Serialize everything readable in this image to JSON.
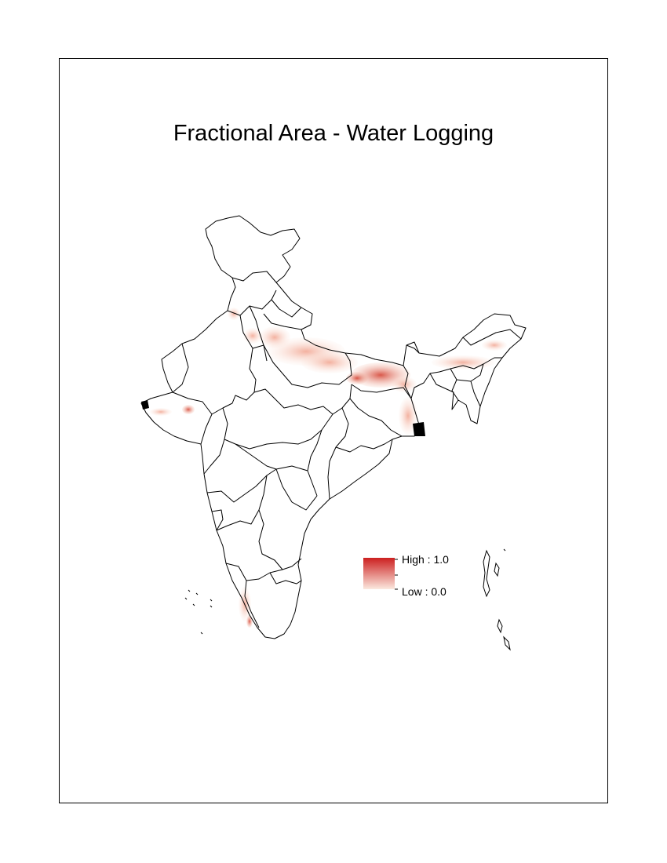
{
  "map": {
    "title": "Fractional Area - Water Logging",
    "legend": {
      "high_label": "High : 1.0",
      "low_label": "Low : 0.0",
      "high_color": "#cc1f1f",
      "low_color": "#fbe9df"
    },
    "outline_color": "#000000",
    "background_color": "#ffffff"
  }
}
